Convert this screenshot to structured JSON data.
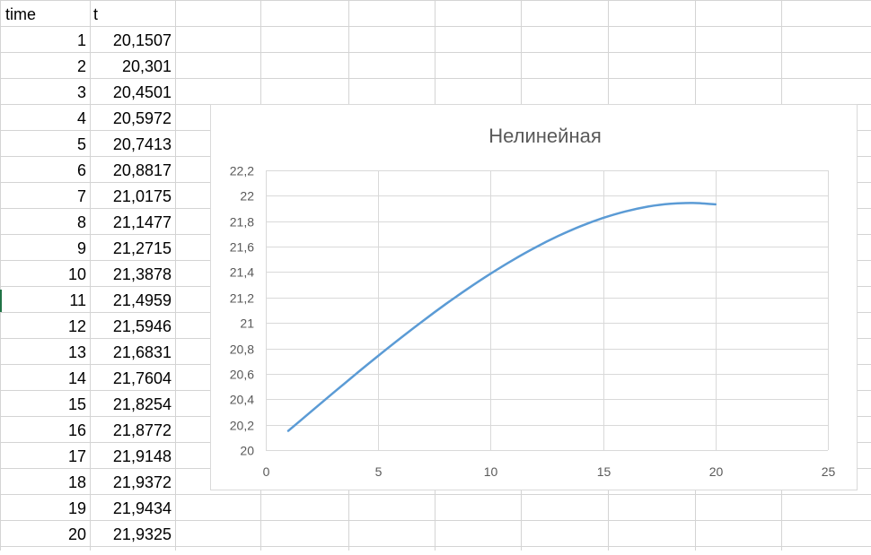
{
  "sheet": {
    "headers": [
      "time",
      "t"
    ],
    "rows": [
      [
        "1",
        "20,1507"
      ],
      [
        "2",
        "20,301"
      ],
      [
        "3",
        "20,4501"
      ],
      [
        "4",
        "20,5972"
      ],
      [
        "5",
        "20,7413"
      ],
      [
        "6",
        "20,8817"
      ],
      [
        "7",
        "21,0175"
      ],
      [
        "8",
        "21,1477"
      ],
      [
        "9",
        "21,2715"
      ],
      [
        "10",
        "21,3878"
      ],
      [
        "11",
        "21,4959"
      ],
      [
        "12",
        "21,5946"
      ],
      [
        "13",
        "21,6831"
      ],
      [
        "14",
        "21,7604"
      ],
      [
        "15",
        "21,8254"
      ],
      [
        "16",
        "21,8772"
      ],
      [
        "17",
        "21,9148"
      ],
      [
        "18",
        "21,9372"
      ],
      [
        "19",
        "21,9434"
      ],
      [
        "20",
        "21,9325"
      ]
    ]
  },
  "chart_data": {
    "type": "scatter",
    "title": "Нелинейная",
    "xlabel": "",
    "ylabel": "",
    "xlim": [
      0,
      25
    ],
    "ylim": [
      20,
      22.2
    ],
    "xticks": [
      0,
      5,
      10,
      15,
      20,
      25
    ],
    "yticks": [
      20,
      20.2,
      20.4,
      20.6,
      20.8,
      21,
      21.2,
      21.4,
      21.6,
      21.8,
      22,
      22.2
    ],
    "xtick_labels": [
      "0",
      "5",
      "10",
      "15",
      "20",
      "25"
    ],
    "ytick_labels": [
      "20",
      "20,2",
      "20,4",
      "20,6",
      "20,8",
      "21",
      "21,2",
      "21,4",
      "21,6",
      "21,8",
      "22",
      "22,2"
    ],
    "grid": true,
    "line_style": "smooth line, no markers",
    "series_color": "#5b9bd5",
    "series": [
      {
        "x": [
          1,
          2,
          3,
          4,
          5,
          6,
          7,
          8,
          9,
          10,
          11,
          12,
          13,
          14,
          15,
          16,
          17,
          18,
          19,
          20
        ],
        "values": [
          20.1507,
          20.301,
          20.4501,
          20.5972,
          20.7413,
          20.8817,
          21.0175,
          21.1477,
          21.2715,
          21.3878,
          21.4959,
          21.5946,
          21.6831,
          21.7604,
          21.8254,
          21.8772,
          21.9148,
          21.9372,
          21.9434,
          21.9325
        ]
      }
    ]
  }
}
